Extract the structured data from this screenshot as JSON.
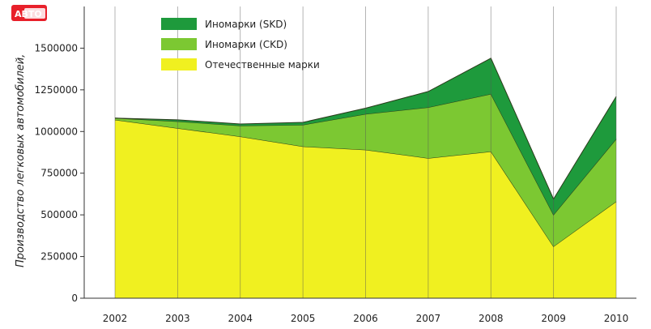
{
  "chart_data": {
    "type": "area",
    "stacked": true,
    "x": [
      "2002",
      "2003",
      "2004",
      "2005",
      "2006",
      "2007",
      "2008",
      "2009",
      "2010"
    ],
    "series": [
      {
        "name": "Отечественные марки",
        "color": "#f0f020",
        "values": [
          1070000,
          1020000,
          970000,
          910000,
          890000,
          840000,
          880000,
          310000,
          580000
        ]
      },
      {
        "name": "Иномарки (CKD)",
        "color": "#7cc832",
        "values": [
          10000,
          40000,
          65000,
          130000,
          215000,
          305000,
          345000,
          190000,
          375000
        ]
      },
      {
        "name": "Иномарки (SKD)",
        "color": "#1e9a3c",
        "values": [
          0,
          10000,
          10000,
          15000,
          35000,
          95000,
          215000,
          95000,
          255000
        ]
      }
    ],
    "ylabel": "Производство легковых автомобилей,",
    "yticks": [
      "0",
      "250000",
      "500000",
      "750000",
      "1000000",
      "1250000",
      "1500000"
    ],
    "ylim": [
      0,
      1750000
    ],
    "grid": "vertical",
    "legend": "top-left"
  },
  "logo": {
    "text": "АВТО",
    "color": "#e8202a"
  }
}
